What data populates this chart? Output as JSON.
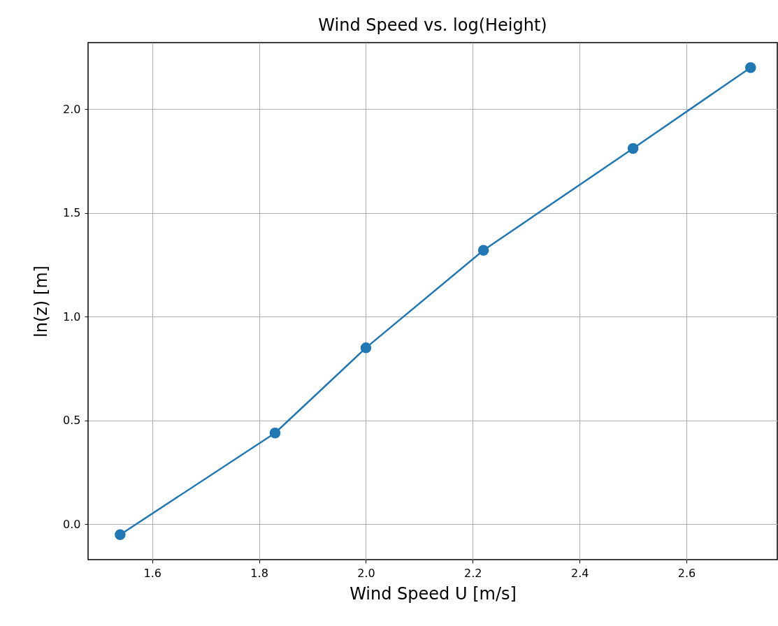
{
  "chart_data": {
    "type": "line",
    "title": "Wind Speed vs. log(Height)",
    "xlabel": "Wind Speed U [m/s]",
    "ylabel": "ln(z) [m]",
    "x": [
      1.54,
      1.83,
      2.0,
      2.22,
      2.5,
      2.72
    ],
    "series": [
      {
        "color": "#1f77b4",
        "values": [
          -0.05,
          0.44,
          0.85,
          1.32,
          1.81,
          2.2
        ]
      }
    ],
    "xlim": [
      1.48,
      2.77
    ],
    "xticks": [
      {
        "value": 1.6,
        "label": "1.6"
      },
      {
        "value": 1.8,
        "label": "1.8"
      },
      {
        "value": 2.0,
        "label": "2.0"
      },
      {
        "value": 2.2,
        "label": "2.2"
      },
      {
        "value": 2.4,
        "label": "2.4"
      },
      {
        "value": 2.6,
        "label": "2.6"
      }
    ],
    "ylim": [
      -0.17,
      2.32
    ],
    "yticks": [
      {
        "value": 0,
        "label": "0.0"
      },
      {
        "value": 0.5,
        "label": "0.5"
      },
      {
        "value": 1,
        "label": "1.0"
      },
      {
        "value": 1.5,
        "label": "1.5"
      },
      {
        "value": 2,
        "label": "2.0"
      }
    ],
    "grid": true,
    "marker": "circle",
    "line_style": "solid"
  }
}
